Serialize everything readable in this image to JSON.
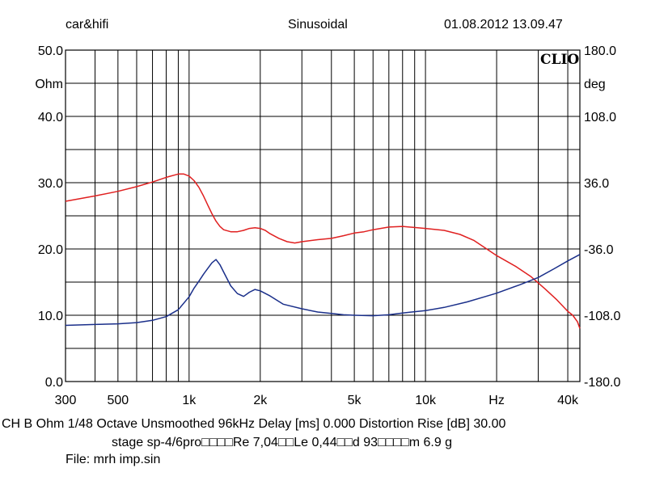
{
  "header": {
    "left": "car&hifi",
    "center": "Sinusoidal",
    "right": "01.08.2012 13.09.47"
  },
  "brand": "CLIO",
  "footer": {
    "line1": "CH B   Ohm   1/48 Octave   Unsmoothed   96kHz   Delay [ms] 0.000   Distortion Rise [dB] 30.00",
    "line2": "stage sp-4/6pro□□□□Re 7,04□□Le 0,44□□d 93□□□□m 6.9 g",
    "line3": "File: mrh imp.sin"
  },
  "chart_data": {
    "type": "line",
    "x_scale": "log",
    "xlim": [
      300,
      45000
    ],
    "x_ticks": [
      {
        "value": 300,
        "label": "300"
      },
      {
        "value": 500,
        "label": "500"
      },
      {
        "value": 1000,
        "label": "1k"
      },
      {
        "value": 2000,
        "label": "2k"
      },
      {
        "value": 5000,
        "label": "5k"
      },
      {
        "value": 10000,
        "label": "10k"
      },
      {
        "value": 20000,
        "label": "Hz"
      },
      {
        "value": 40000,
        "label": "40k"
      }
    ],
    "y_left": {
      "unit": "Ohm",
      "lim": [
        0,
        50
      ],
      "ticks": [
        {
          "value": 0,
          "label": "0.0"
        },
        {
          "value": 10,
          "label": "10.0"
        },
        {
          "value": 20,
          "label": "20.0"
        },
        {
          "value": 30,
          "label": "30.0"
        },
        {
          "value": 40,
          "label": "40.0"
        },
        {
          "value": 50,
          "label": "50.0"
        }
      ]
    },
    "y_right": {
      "unit": "deg",
      "lim": [
        -180,
        180
      ],
      "ticks": [
        {
          "value": -180,
          "label": "-180.0"
        },
        {
          "value": -108,
          "label": "-108.0"
        },
        {
          "value": -36,
          "label": "-36.0"
        },
        {
          "value": 36,
          "label": "36.0"
        },
        {
          "value": 108,
          "label": "108.0"
        },
        {
          "value": 180,
          "label": "180.0"
        }
      ]
    },
    "grid": true,
    "series": [
      {
        "axis": "left",
        "color": "#e02020",
        "points": [
          [
            300,
            27.2
          ],
          [
            400,
            28.0
          ],
          [
            500,
            28.7
          ],
          [
            600,
            29.4
          ],
          [
            700,
            30.1
          ],
          [
            800,
            30.8
          ],
          [
            900,
            31.3
          ],
          [
            950,
            31.3
          ],
          [
            1000,
            31.0
          ],
          [
            1050,
            30.3
          ],
          [
            1100,
            29.3
          ],
          [
            1150,
            28.0
          ],
          [
            1200,
            26.6
          ],
          [
            1250,
            25.3
          ],
          [
            1300,
            24.2
          ],
          [
            1350,
            23.4
          ],
          [
            1400,
            22.9
          ],
          [
            1500,
            22.6
          ],
          [
            1600,
            22.6
          ],
          [
            1700,
            22.8
          ],
          [
            1800,
            23.1
          ],
          [
            1900,
            23.2
          ],
          [
            2000,
            23.1
          ],
          [
            2100,
            22.8
          ],
          [
            2200,
            22.3
          ],
          [
            2400,
            21.6
          ],
          [
            2600,
            21.1
          ],
          [
            2800,
            20.9
          ],
          [
            3000,
            21.1
          ],
          [
            3500,
            21.4
          ],
          [
            4000,
            21.6
          ],
          [
            4500,
            22.0
          ],
          [
            5000,
            22.4
          ],
          [
            5500,
            22.6
          ],
          [
            6000,
            22.9
          ],
          [
            7000,
            23.3
          ],
          [
            8000,
            23.4
          ],
          [
            10000,
            23.1
          ],
          [
            12000,
            22.8
          ],
          [
            14000,
            22.2
          ],
          [
            16000,
            21.3
          ],
          [
            18000,
            20.1
          ],
          [
            20000,
            19.0
          ],
          [
            24000,
            17.4
          ],
          [
            28000,
            15.8
          ],
          [
            32000,
            14.0
          ],
          [
            36000,
            12.3
          ],
          [
            40000,
            10.6
          ],
          [
            42000,
            10.0
          ],
          [
            44000,
            9.0
          ],
          [
            45000,
            8.0
          ]
        ]
      },
      {
        "axis": "right",
        "color": "#1a2f8a",
        "points": [
          [
            300,
            -119.0
          ],
          [
            400,
            -118.0
          ],
          [
            500,
            -117.3
          ],
          [
            600,
            -116.0
          ],
          [
            700,
            -113.5
          ],
          [
            800,
            -109.5
          ],
          [
            900,
            -102.0
          ],
          [
            1000,
            -88.0
          ],
          [
            1050,
            -78.5
          ],
          [
            1100,
            -71.0
          ],
          [
            1150,
            -63.5
          ],
          [
            1200,
            -57.0
          ],
          [
            1250,
            -51.0
          ],
          [
            1300,
            -47.5
          ],
          [
            1350,
            -53.0
          ],
          [
            1400,
            -61.0
          ],
          [
            1500,
            -76.0
          ],
          [
            1600,
            -84.5
          ],
          [
            1700,
            -87.5
          ],
          [
            1800,
            -83.0
          ],
          [
            1900,
            -80.0
          ],
          [
            2000,
            -81.5
          ],
          [
            2200,
            -87.0
          ],
          [
            2500,
            -96.0
          ],
          [
            3000,
            -101.0
          ],
          [
            3500,
            -104.5
          ],
          [
            4000,
            -106.0
          ],
          [
            4500,
            -107.5
          ],
          [
            5000,
            -108.0
          ],
          [
            6000,
            -108.5
          ],
          [
            7000,
            -107.5
          ],
          [
            8000,
            -105.5
          ],
          [
            10000,
            -103.0
          ],
          [
            12000,
            -99.5
          ],
          [
            15000,
            -93.5
          ],
          [
            18000,
            -87.5
          ],
          [
            20000,
            -84.0
          ],
          [
            25000,
            -75.0
          ],
          [
            30000,
            -67.0
          ],
          [
            35000,
            -57.5
          ],
          [
            40000,
            -49.0
          ],
          [
            45000,
            -42.0
          ]
        ]
      }
    ]
  }
}
